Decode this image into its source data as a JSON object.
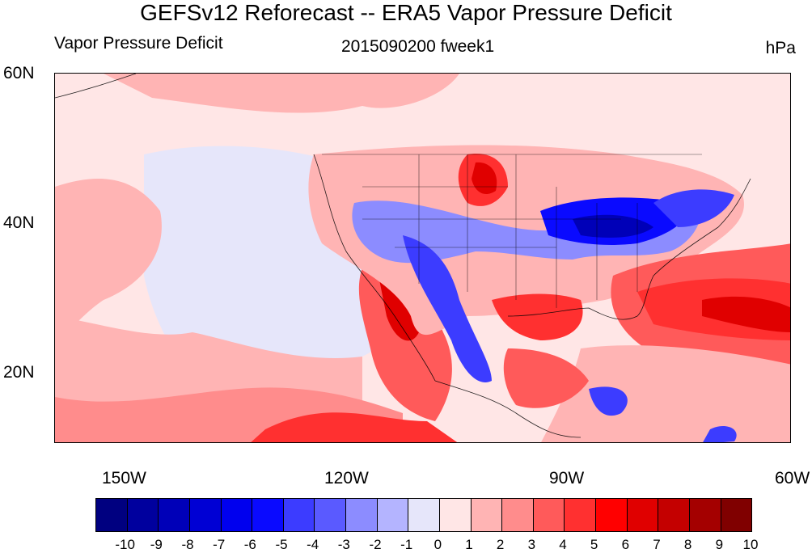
{
  "title": "GEFSv12 Reforecast -- ERA5 Vapor Pressure Deficit",
  "subtitle_left": "Vapor Pressure Deficit",
  "subtitle_center": "2015090200 fweek1",
  "subtitle_right": "hPa",
  "lat_labels": [
    "60N",
    "40N",
    "20N"
  ],
  "lon_labels": [
    "150W",
    "120W",
    "90W",
    "60W"
  ],
  "colorbar": {
    "labels": [
      "-10",
      "-9",
      "-8",
      "-7",
      "-6",
      "-5",
      "-4",
      "-3",
      "-2",
      "-1",
      "0",
      "1",
      "2",
      "3",
      "4",
      "5",
      "6",
      "7",
      "8",
      "9",
      "10"
    ],
    "colors": [
      "#000080",
      "#00009e",
      "#0000b8",
      "#0000d4",
      "#0000ee",
      "#0a0aff",
      "#3c3cff",
      "#5a5aff",
      "#8c8cff",
      "#b4b4ff",
      "#e6e6fa",
      "#ffe6e6",
      "#ffb4b4",
      "#ff8c8c",
      "#ff5a5a",
      "#ff3030",
      "#ff0000",
      "#e00000",
      "#c40000",
      "#a40000",
      "#800000"
    ]
  },
  "colors": {
    "ocean_background": "#ffe6e6",
    "west_pacific_band": "#ffb4b4",
    "east_pacific_neutral": "#e6e6fa",
    "atlantic_warm": "#ff5a5a"
  }
}
